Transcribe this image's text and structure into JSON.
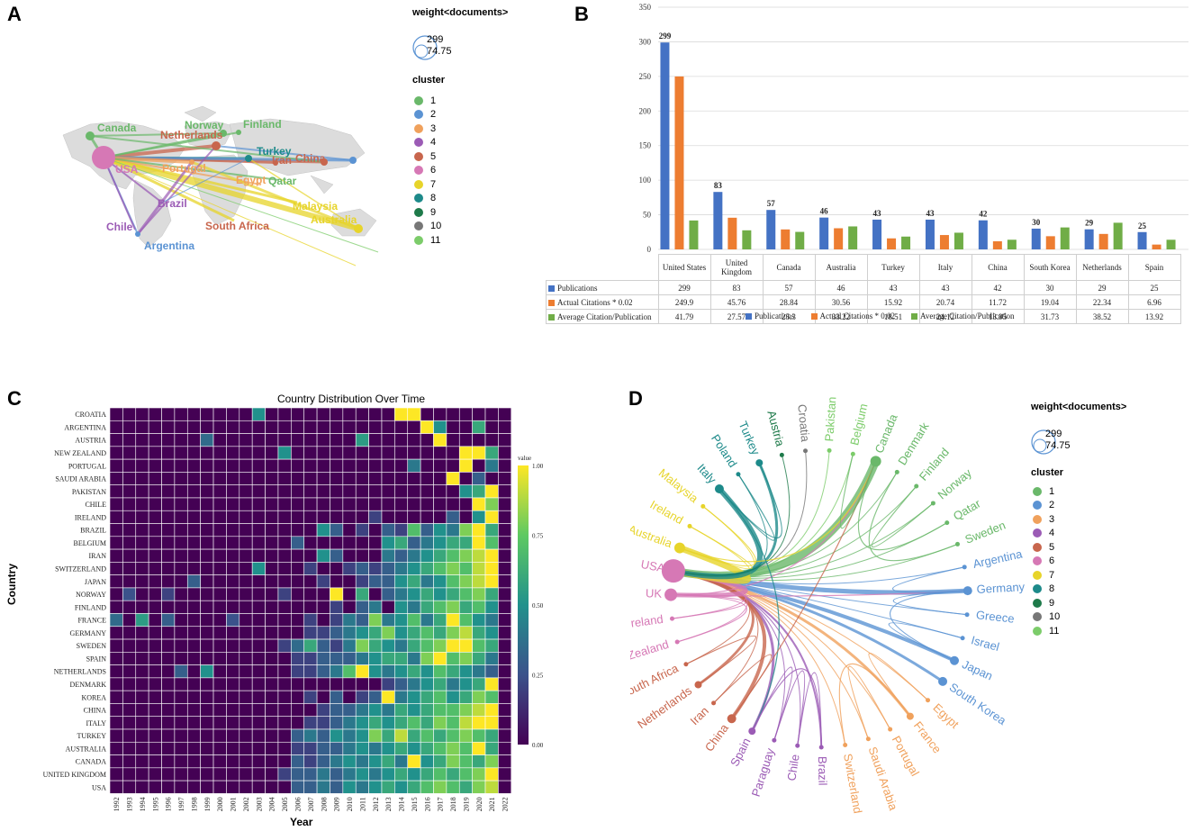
{
  "panels": {
    "a": "A",
    "b": "B",
    "c": "C",
    "d": "D"
  },
  "legend": {
    "weight_title": "weight<documents>",
    "size_max": "299",
    "size_min": "74.75",
    "cluster_title": "cluster",
    "clusters": [
      "1",
      "2",
      "3",
      "4",
      "5",
      "6",
      "7",
      "8",
      "9",
      "10",
      "11"
    ],
    "cluster_colors": [
      "#6ab86a",
      "#5b93d3",
      "#f0a15c",
      "#9b5bb5",
      "#c8664d",
      "#d678b5",
      "#e7d42a",
      "#1d8a8a",
      "#1e7a4a",
      "#777777",
      "#7ccc6a"
    ]
  },
  "map": {
    "labels": [
      "Canada",
      "Norway",
      "Finland",
      "Netherlands",
      "Turkey",
      "Iran",
      "China",
      "USA",
      "Portugal",
      "Egypt",
      "Qatar",
      "Brazil",
      "Malaysia",
      "Australia",
      "South Africa",
      "Chile",
      "Argentina"
    ]
  },
  "chart_data": [
    {
      "type": "bar",
      "title": "",
      "categories": [
        "United States",
        "United Kingdom",
        "Canada",
        "Australia",
        "Turkey",
        "Italy",
        "China",
        "South Korea",
        "Netherlands",
        "Spain"
      ],
      "series": [
        {
          "name": "Publications",
          "color": "#4472c4",
          "values": [
            299,
            83,
            57,
            46,
            43,
            43,
            42,
            30,
            29,
            25
          ]
        },
        {
          "name": "Actual Citations * 0.02",
          "color": "#ed7d31",
          "values": [
            249.9,
            45.76,
            28.84,
            30.56,
            15.92,
            20.74,
            11.72,
            19.04,
            22.34,
            6.96
          ]
        },
        {
          "name": "Average Citation/Publication",
          "color": "#70ad47",
          "values": [
            41.79,
            27.57,
            25.3,
            33.22,
            18.51,
            24.12,
            13.95,
            31.73,
            38.52,
            13.92
          ]
        }
      ],
      "data_labels": [
        "299",
        "83",
        "57",
        "46",
        "43",
        "43",
        "42",
        "30",
        "29",
        "25"
      ],
      "table_values": [
        [
          "299",
          "83",
          "57",
          "46",
          "43",
          "43",
          "42",
          "30",
          "29",
          "25"
        ],
        [
          "249.9",
          "45.76",
          "28.84",
          "30.56",
          "15.92",
          "20.74",
          "11.72",
          "19.04",
          "22.34",
          "6.96"
        ],
        [
          "41.79",
          "27.57",
          "25.3",
          "33.22",
          "18.51",
          "24.12",
          "13.95",
          "31.73",
          "38.52",
          "13.92"
        ]
      ],
      "yticks": [
        "0",
        "50",
        "100",
        "150",
        "200",
        "250",
        "300",
        "350"
      ],
      "ylim": [
        0,
        350
      ]
    },
    {
      "type": "heatmap",
      "title": "Country Distribution Over Time",
      "xlabel": "Year",
      "ylabel": "Country",
      "years": [
        "1992",
        "1993",
        "1994",
        "1995",
        "1996",
        "1997",
        "1998",
        "1999",
        "2000",
        "2001",
        "2002",
        "2003",
        "2004",
        "2005",
        "2006",
        "2007",
        "2008",
        "2009",
        "2010",
        "2011",
        "2012",
        "2013",
        "2014",
        "2015",
        "2016",
        "2017",
        "2018",
        "2019",
        "2020",
        "2021",
        "2022"
      ],
      "countries": [
        "CROATIA",
        "ARGENTINA",
        "AUSTRIA",
        "NEW ZEALAND",
        "PORTUGAL",
        "SAUDI ARABIA",
        "PAKISTAN",
        "CHILE",
        "IRELAND",
        "BRAZIL",
        "BELGIUM",
        "IRAN",
        "SWITZERLAND",
        "JAPAN",
        "NORWAY",
        "FINLAND",
        "FRANCE",
        "GERMANY",
        "SWEDEN",
        "SPAIN",
        "NETHERLANDS",
        "DENMARK",
        "KOREA",
        "CHINA",
        "ITALY",
        "TURKEY",
        "AUSTRALIA",
        "CANADA",
        "UNITED KINGDOM",
        "USA"
      ],
      "colorbar_title": "value",
      "colorbar_ticks": [
        "1.00",
        "0.75",
        "0.50",
        "0.25",
        "0.00"
      ],
      "values": [
        [
          0,
          0,
          0,
          0,
          0,
          0,
          0,
          0,
          0,
          0,
          0,
          0.5,
          0,
          0,
          0,
          0,
          0,
          0,
          0,
          0,
          0,
          0,
          1,
          1,
          0,
          0,
          0,
          0,
          0,
          0,
          0
        ],
        [
          0,
          0,
          0,
          0,
          0,
          0,
          0,
          0,
          0,
          0,
          0,
          0,
          0,
          0,
          0,
          0,
          0,
          0,
          0,
          0,
          0,
          0,
          0,
          0,
          1,
          0.5,
          0,
          0,
          0.6,
          0,
          0
        ],
        [
          0,
          0,
          0,
          0,
          0,
          0,
          0,
          0.35,
          0,
          0,
          0,
          0,
          0,
          0,
          0,
          0,
          0,
          0,
          0,
          0.55,
          0,
          0,
          0,
          0,
          0,
          1,
          0,
          0,
          0,
          0,
          0
        ],
        [
          0,
          0,
          0,
          0,
          0,
          0,
          0,
          0,
          0,
          0,
          0,
          0,
          0,
          0.5,
          0,
          0,
          0,
          0,
          0,
          0,
          0,
          0,
          0,
          0,
          0,
          0,
          0,
          1,
          1,
          0.6,
          0
        ],
        [
          0,
          0,
          0,
          0,
          0,
          0,
          0,
          0,
          0,
          0,
          0,
          0,
          0,
          0,
          0,
          0,
          0,
          0,
          0,
          0,
          0,
          0,
          0,
          0.4,
          0,
          0,
          0,
          1,
          0,
          0.4,
          0
        ],
        [
          0,
          0,
          0,
          0,
          0,
          0,
          0,
          0,
          0,
          0,
          0,
          0,
          0,
          0,
          0,
          0,
          0,
          0,
          0,
          0,
          0,
          0,
          0,
          0,
          0,
          0,
          1,
          0,
          0.3,
          0,
          0
        ],
        [
          0,
          0,
          0,
          0,
          0,
          0,
          0,
          0,
          0,
          0,
          0,
          0,
          0,
          0,
          0,
          0,
          0,
          0,
          0,
          0,
          0,
          0,
          0,
          0,
          0,
          0,
          0,
          0.5,
          0.6,
          1,
          0
        ],
        [
          0,
          0,
          0,
          0,
          0,
          0,
          0,
          0,
          0,
          0,
          0,
          0,
          0,
          0,
          0,
          0,
          0,
          0,
          0,
          0,
          0,
          0,
          0,
          0,
          0,
          0,
          0,
          0,
          1,
          0.8,
          0
        ],
        [
          0,
          0,
          0,
          0,
          0,
          0,
          0,
          0,
          0,
          0,
          0,
          0,
          0,
          0,
          0,
          0,
          0,
          0,
          0,
          0,
          0.2,
          0,
          0,
          0,
          0,
          0,
          0.3,
          0,
          0.5,
          1,
          0
        ],
        [
          0,
          0,
          0,
          0,
          0,
          0,
          0,
          0,
          0,
          0,
          0,
          0,
          0,
          0,
          0,
          0,
          0.5,
          0.3,
          0,
          0.2,
          0,
          0.3,
          0.2,
          0.7,
          0.3,
          0.5,
          0.4,
          0.8,
          1,
          0.6,
          0
        ],
        [
          0,
          0,
          0,
          0,
          0,
          0,
          0,
          0,
          0,
          0,
          0,
          0,
          0,
          0,
          0.3,
          0,
          0,
          0,
          0,
          0,
          0,
          0.5,
          0.6,
          0.3,
          0.4,
          0.5,
          0.6,
          0.6,
          1,
          0.7,
          0
        ],
        [
          0,
          0,
          0,
          0,
          0,
          0,
          0,
          0,
          0,
          0,
          0,
          0,
          0,
          0,
          0,
          0,
          0.5,
          0.3,
          0,
          0,
          0,
          0.4,
          0.3,
          0.4,
          0.5,
          0.6,
          0.7,
          0.8,
          0.9,
          1,
          0
        ],
        [
          0,
          0,
          0,
          0,
          0,
          0,
          0,
          0,
          0,
          0,
          0,
          0.5,
          0,
          0,
          0,
          0.2,
          0,
          0,
          0.2,
          0.3,
          0.2,
          0.3,
          0.4,
          0.5,
          0.6,
          0.7,
          0.8,
          0.7,
          0.9,
          1,
          0
        ],
        [
          0,
          0,
          0,
          0,
          0,
          0,
          0.3,
          0,
          0,
          0,
          0,
          0,
          0,
          0,
          0,
          0,
          0.2,
          0,
          0,
          0.2,
          0.3,
          0.3,
          0.5,
          0.6,
          0.4,
          0.5,
          0.7,
          0.8,
          0.9,
          1,
          0
        ],
        [
          0,
          0.25,
          0,
          0,
          0.2,
          0,
          0,
          0,
          0,
          0,
          0,
          0,
          0,
          0.2,
          0,
          0,
          0,
          1,
          0,
          0.6,
          0,
          0.3,
          0.4,
          0.5,
          0.6,
          0.5,
          0.6,
          0.7,
          0.8,
          0.6,
          0
        ],
        [
          0,
          0,
          0,
          0,
          0,
          0,
          0,
          0,
          0,
          0,
          0,
          0,
          0,
          0,
          0,
          0,
          0,
          0.2,
          0,
          0.3,
          0.4,
          0,
          0.5,
          0.4,
          0.6,
          0.7,
          0.8,
          0.6,
          0.7,
          0.5,
          0
        ],
        [
          0.35,
          0,
          0.55,
          0,
          0.3,
          0,
          0,
          0,
          0,
          0.25,
          0,
          0,
          0,
          0,
          0,
          0.2,
          0,
          0.2,
          0.4,
          0.3,
          0.8,
          0.4,
          0.5,
          0.7,
          0.4,
          0.6,
          1,
          0.7,
          0.5,
          0.4,
          0
        ],
        [
          0,
          0,
          0,
          0,
          0,
          0,
          0,
          0,
          0,
          0,
          0,
          0,
          0,
          0,
          0,
          0.2,
          0.2,
          0.3,
          0.4,
          0.5,
          0.6,
          0.8,
          0.5,
          0.6,
          0.7,
          0.6,
          0.8,
          0.9,
          0.6,
          0.5,
          0
        ],
        [
          0,
          0,
          0,
          0,
          0,
          0,
          0,
          0,
          0,
          0,
          0,
          0,
          0,
          0.2,
          0.35,
          0.6,
          0.3,
          0.2,
          0.4,
          0.8,
          0.6,
          0.5,
          0.4,
          0.6,
          0.7,
          0.8,
          1,
          1,
          0.7,
          0.6,
          0
        ],
        [
          0,
          0,
          0,
          0,
          0,
          0,
          0,
          0,
          0,
          0,
          0,
          0,
          0,
          0,
          0.2,
          0.2,
          0.3,
          0.3,
          0.3,
          0.4,
          0.5,
          0.6,
          0.6,
          0.4,
          0.8,
          1,
          0.7,
          0.8,
          0.6,
          0.4,
          0
        ],
        [
          0,
          0,
          0,
          0,
          0,
          0.3,
          0,
          0.5,
          0,
          0,
          0,
          0,
          0,
          0,
          0.2,
          0.2,
          0.3,
          0.4,
          0.7,
          1,
          0.5,
          0.4,
          0.5,
          0.6,
          0.5,
          0.7,
          0.6,
          0.5,
          0.4,
          0.3,
          0
        ],
        [
          0,
          0,
          0,
          0,
          0,
          0,
          0,
          0,
          0,
          0,
          0,
          0,
          0,
          0,
          0,
          0,
          0,
          0,
          0,
          0,
          0,
          0.2,
          0.3,
          0.4,
          0.5,
          0.6,
          0.4,
          0.5,
          0.6,
          1,
          0
        ],
        [
          0,
          0,
          0,
          0,
          0,
          0,
          0,
          0,
          0,
          0,
          0,
          0,
          0,
          0,
          0,
          0.2,
          0,
          0.3,
          0,
          0.2,
          0.3,
          1,
          0.4,
          0.5,
          0.6,
          0.7,
          0.5,
          0.6,
          0.8,
          0.7,
          0
        ],
        [
          0,
          0,
          0,
          0,
          0,
          0,
          0,
          0,
          0,
          0,
          0,
          0,
          0,
          0,
          0,
          0,
          0.2,
          0.3,
          0.3,
          0.4,
          0.5,
          0.4,
          0.6,
          0.5,
          0.6,
          0.7,
          0.7,
          0.8,
          0.9,
          1,
          0
        ],
        [
          0,
          0,
          0,
          0,
          0,
          0,
          0,
          0,
          0,
          0,
          0,
          0,
          0,
          0,
          0,
          0.2,
          0.2,
          0.3,
          0.4,
          0.5,
          0.6,
          0.5,
          0.6,
          0.7,
          0.6,
          0.8,
          0.7,
          0.9,
          1,
          1,
          0
        ],
        [
          0,
          0,
          0,
          0,
          0,
          0,
          0,
          0,
          0,
          0,
          0,
          0,
          0,
          0,
          0.3,
          0.4,
          0.3,
          0.5,
          0.4,
          0.5,
          0.8,
          0.6,
          0.9,
          0.6,
          0.7,
          0.6,
          0.7,
          0.8,
          0.7,
          0.6,
          0
        ],
        [
          0,
          0,
          0,
          0,
          0,
          0,
          0,
          0,
          0,
          0,
          0,
          0,
          0,
          0,
          0.2,
          0.2,
          0.3,
          0.3,
          0.4,
          0.5,
          0.4,
          0.5,
          0.6,
          0.5,
          0.6,
          0.7,
          0.8,
          0.7,
          1,
          0.6,
          0
        ],
        [
          0,
          0,
          0,
          0,
          0,
          0,
          0,
          0,
          0,
          0,
          0,
          0,
          0,
          0,
          0.3,
          0.2,
          0.3,
          0.4,
          0.5,
          0.4,
          0.5,
          0.6,
          0.4,
          1,
          0.5,
          0.6,
          0.8,
          0.7,
          0.6,
          0.8,
          0
        ],
        [
          0,
          0,
          0,
          0,
          0,
          0,
          0,
          0,
          0,
          0,
          0,
          0,
          0,
          0.2,
          0.3,
          0.3,
          0.4,
          0.3,
          0.4,
          0.5,
          0.4,
          0.5,
          0.6,
          0.5,
          0.6,
          0.7,
          0.6,
          0.7,
          0.8,
          1,
          0
        ],
        [
          0,
          0,
          0,
          0,
          0,
          0,
          0,
          0,
          0,
          0,
          0,
          0,
          0,
          0,
          0.3,
          0.3,
          0.4,
          0.3,
          0.5,
          0.4,
          0.5,
          0.6,
          0.5,
          0.6,
          0.7,
          0.8,
          0.7,
          0.6,
          0.8,
          0.9,
          0
        ]
      ]
    }
  ],
  "network": {
    "labels": [
      "Croatia",
      "Pakistan",
      "Belgium",
      "Canada",
      "Denmark",
      "Finland",
      "Norway",
      "Qatar",
      "Sweden",
      "Argentina",
      "Germany",
      "Greece",
      "Israel",
      "Japan",
      "South Korea",
      "Egypt",
      "France",
      "Portugal",
      "Saudi Arabia",
      "Switzerland",
      "Brazil",
      "Chile",
      "Paraguay",
      "Spain",
      "China",
      "Iran",
      "Netherlands",
      "South Africa",
      "New Zealand",
      "North Ireland",
      "UK",
      "USA",
      "Australia",
      "Ireland",
      "Malaysia",
      "Italy",
      "Poland",
      "Turkey",
      "Austria"
    ]
  }
}
